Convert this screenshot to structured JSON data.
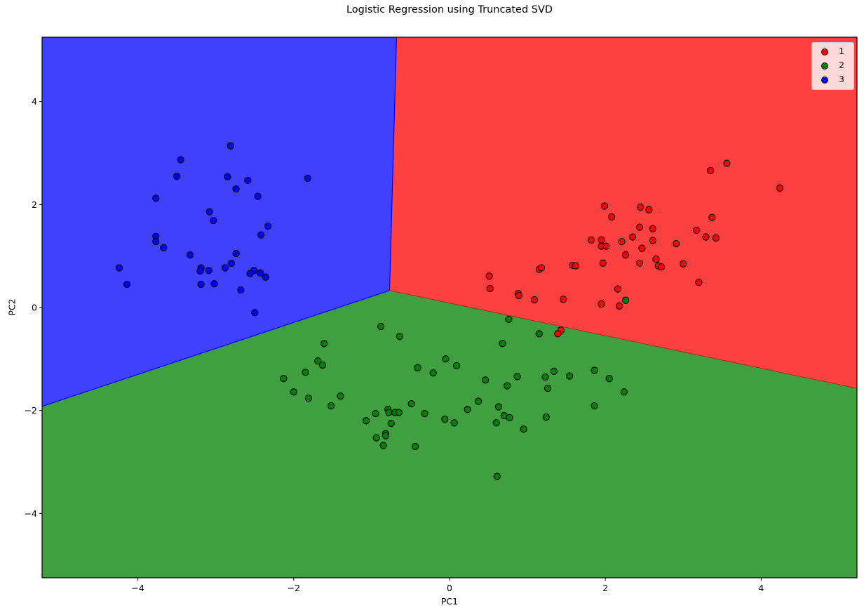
{
  "chart_data": {
    "type": "scatter",
    "title": "Logistic Regression using Truncated SVD",
    "xlabel": "PC1",
    "ylabel": "PC2",
    "xlim": [
      -5.23,
      5.23
    ],
    "ylim": [
      -5.25,
      5.25
    ],
    "xticks": [
      -4,
      -2,
      0,
      2,
      4
    ],
    "yticks": [
      -4,
      -2,
      0,
      2,
      4
    ],
    "xtick_labels": [
      "−4",
      "−2",
      "0",
      "2",
      "4"
    ],
    "ytick_labels": [
      "−4",
      "−2",
      "0",
      "2",
      "4"
    ],
    "grid": false,
    "legend_position": "upper right",
    "decision_regions": {
      "colors": {
        "1": "#ff4040",
        "2": "#40a040",
        "3": "#4040ff"
      },
      "vertex": [
        -0.77,
        0.33
      ],
      "boundaries": [
        {
          "between": [
            "3",
            "1"
          ],
          "from": [
            -0.77,
            0.33
          ],
          "to": [
            -0.68,
            5.25
          ]
        },
        {
          "between": [
            "3",
            "2"
          ],
          "from": [
            -0.77,
            0.33
          ],
          "to": [
            -5.23,
            -1.92
          ]
        },
        {
          "between": [
            "1",
            "2"
          ],
          "from": [
            -0.77,
            0.33
          ],
          "to": [
            5.23,
            -1.57
          ]
        }
      ]
    },
    "series": [
      {
        "name": "1",
        "color": "#ff0000",
        "points": [
          [
            1.99,
            1.97
          ],
          [
            2.45,
            1.95
          ],
          [
            2.56,
            1.9
          ],
          [
            2.08,
            1.76
          ],
          [
            2.44,
            1.56
          ],
          [
            2.61,
            1.53
          ],
          [
            2.35,
            1.37
          ],
          [
            1.82,
            1.31
          ],
          [
            1.95,
            1.31
          ],
          [
            2.21,
            1.28
          ],
          [
            2.61,
            1.3
          ],
          [
            2.91,
            1.24
          ],
          [
            1.95,
            1.19
          ],
          [
            2.01,
            1.19
          ],
          [
            2.47,
            1.15
          ],
          [
            2.26,
            1.02
          ],
          [
            2.65,
            0.94
          ],
          [
            1.97,
            0.86
          ],
          [
            2.44,
            0.86
          ],
          [
            2.68,
            0.81
          ],
          [
            2.72,
            0.79
          ],
          [
            3.0,
            0.85
          ],
          [
            1.58,
            0.82
          ],
          [
            1.62,
            0.81
          ],
          [
            1.15,
            0.74
          ],
          [
            1.18,
            0.77
          ],
          [
            0.51,
            0.61
          ],
          [
            0.52,
            0.37
          ],
          [
            2.16,
            0.36
          ],
          [
            0.88,
            0.27
          ],
          [
            0.89,
            0.23
          ],
          [
            1.09,
            0.15
          ],
          [
            1.46,
            0.16
          ],
          [
            1.95,
            0.07
          ],
          [
            2.18,
            0.03
          ],
          [
            1.43,
            -0.44
          ],
          [
            1.39,
            -0.51
          ],
          [
            3.56,
            2.8
          ],
          [
            3.35,
            2.66
          ],
          [
            4.24,
            2.32
          ],
          [
            3.37,
            1.75
          ],
          [
            3.17,
            1.5
          ],
          [
            3.29,
            1.37
          ],
          [
            3.42,
            1.35
          ],
          [
            3.2,
            0.49
          ]
        ]
      },
      {
        "name": "2",
        "color": "#008000",
        "points": [
          [
            2.26,
            0.14
          ],
          [
            -0.88,
            -0.37
          ],
          [
            -0.64,
            -0.56
          ],
          [
            -1.61,
            -0.7
          ],
          [
            -1.69,
            -1.04
          ],
          [
            -1.63,
            -1.12
          ],
          [
            -1.85,
            -1.26
          ],
          [
            -2.13,
            -1.38
          ],
          [
            -2.0,
            -1.64
          ],
          [
            -1.81,
            -1.76
          ],
          [
            -1.4,
            -1.72
          ],
          [
            -1.52,
            -1.91
          ],
          [
            -0.41,
            -1.17
          ],
          [
            -0.21,
            -1.27
          ],
          [
            -0.05,
            -1.0
          ],
          [
            -0.49,
            -1.87
          ],
          [
            -0.95,
            -2.06
          ],
          [
            -0.79,
            -1.98
          ],
          [
            -0.78,
            -2.04
          ],
          [
            -0.7,
            -2.04
          ],
          [
            -0.65,
            -2.04
          ],
          [
            -0.32,
            -2.06
          ],
          [
            -0.06,
            -2.17
          ],
          [
            -1.07,
            -2.2
          ],
          [
            -0.75,
            -2.25
          ],
          [
            -0.82,
            -2.45
          ],
          [
            -0.82,
            -2.49
          ],
          [
            -0.94,
            -2.53
          ],
          [
            -0.85,
            -2.68
          ],
          [
            -0.44,
            -2.7
          ],
          [
            0.76,
            -0.23
          ],
          [
            1.15,
            -0.51
          ],
          [
            0.68,
            -0.7
          ],
          [
            0.09,
            -1.13
          ],
          [
            0.46,
            -1.41
          ],
          [
            0.74,
            -1.52
          ],
          [
            0.87,
            -1.34
          ],
          [
            1.23,
            -1.35
          ],
          [
            1.34,
            -1.24
          ],
          [
            1.54,
            -1.33
          ],
          [
            1.86,
            -1.22
          ],
          [
            2.05,
            -1.38
          ],
          [
            2.24,
            -1.64
          ],
          [
            1.26,
            -1.57
          ],
          [
            0.37,
            -1.82
          ],
          [
            0.23,
            -1.98
          ],
          [
            0.63,
            -1.93
          ],
          [
            0.06,
            -2.24
          ],
          [
            0.6,
            -2.24
          ],
          [
            0.7,
            -2.1
          ],
          [
            0.77,
            -2.14
          ],
          [
            0.95,
            -2.36
          ],
          [
            1.24,
            -2.13
          ],
          [
            1.86,
            -1.91
          ],
          [
            0.61,
            -3.28
          ]
        ]
      },
      {
        "name": "3",
        "color": "#0000ff",
        "points": [
          [
            -2.81,
            3.14
          ],
          [
            -3.45,
            2.87
          ],
          [
            -3.5,
            2.55
          ],
          [
            -2.85,
            2.54
          ],
          [
            -2.59,
            2.47
          ],
          [
            -1.82,
            2.51
          ],
          [
            -2.74,
            2.3
          ],
          [
            -2.46,
            2.16
          ],
          [
            -3.77,
            2.12
          ],
          [
            -3.08,
            1.86
          ],
          [
            -3.03,
            1.69
          ],
          [
            -2.33,
            1.58
          ],
          [
            -2.42,
            1.41
          ],
          [
            -3.77,
            1.38
          ],
          [
            -3.77,
            1.28
          ],
          [
            -3.67,
            1.16
          ],
          [
            -3.33,
            1.02
          ],
          [
            -2.74,
            1.05
          ],
          [
            -2.8,
            0.86
          ],
          [
            -2.88,
            0.77
          ],
          [
            -3.19,
            0.77
          ],
          [
            -3.2,
            0.71
          ],
          [
            -3.09,
            0.72
          ],
          [
            -4.24,
            0.77
          ],
          [
            -2.51,
            0.72
          ],
          [
            -2.56,
            0.66
          ],
          [
            -2.43,
            0.67
          ],
          [
            -2.36,
            0.59
          ],
          [
            -4.14,
            0.45
          ],
          [
            -3.19,
            0.45
          ],
          [
            -3.02,
            0.46
          ],
          [
            -2.68,
            0.34
          ],
          [
            -2.5,
            -0.1
          ]
        ]
      }
    ]
  },
  "legend": {
    "items": [
      {
        "label": "1",
        "color": "#ff0000"
      },
      {
        "label": "2",
        "color": "#008000"
      },
      {
        "label": "3",
        "color": "#0000ff"
      }
    ]
  }
}
